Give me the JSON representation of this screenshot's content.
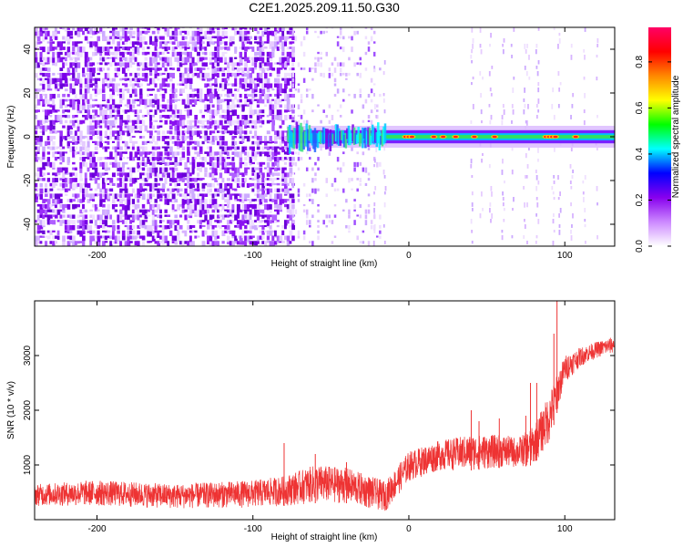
{
  "title": "C2E1.2025.209.11.50.G30",
  "chart_data": [
    {
      "type": "heatmap",
      "xlabel": "Height of straight line (km)",
      "ylabel": "Frequency (Hz)",
      "xlim": [
        -240,
        132
      ],
      "ylim": [
        -50,
        50
      ],
      "x_ticks": [
        -200,
        -100,
        0,
        100
      ],
      "y_ticks": [
        -40,
        -20,
        0,
        20,
        40
      ],
      "colorbar": {
        "label": "Normalized spectral amplitude",
        "range": [
          0.0,
          0.95
        ],
        "ticks": [
          0.0,
          0.2,
          0.4,
          0.6,
          0.8
        ],
        "colors": [
          "#ffffff",
          "#cc88ff",
          "#8800ee",
          "#0000ff",
          "#00ffff",
          "#00ff00",
          "#ffff00",
          "#ff8800",
          "#ff0000",
          "#ff0066"
        ]
      },
      "features": {
        "noise_region": [
          -240,
          -75
        ],
        "faint_noise_region": [
          -75,
          -18
        ],
        "carrier_band_start": -78,
        "carrier_frequency": 0
      },
      "grid": false
    },
    {
      "type": "line",
      "xlabel": "Height of straight line (km)",
      "ylabel": "SNR (10 * v/v)",
      "xlim": [
        -240,
        132
      ],
      "ylim": [
        0,
        4000
      ],
      "x_ticks": [
        -200,
        -100,
        0,
        100
      ],
      "y_ticks": [
        1000,
        2000,
        3000
      ],
      "series_color": "#ee3333",
      "envelope": {
        "x": [
          -240,
          -200,
          -150,
          -100,
          -80,
          -60,
          -40,
          -25,
          -15,
          0,
          20,
          40,
          60,
          70,
          80,
          90,
          100,
          110,
          120,
          132
        ],
        "low": [
          250,
          250,
          200,
          220,
          250,
          300,
          300,
          200,
          150,
          700,
          900,
          900,
          950,
          950,
          1000,
          1400,
          2500,
          2800,
          2950,
          3050
        ],
        "high": [
          650,
          720,
          650,
          720,
          800,
          1000,
          950,
          800,
          700,
          1250,
          1450,
          1550,
          1550,
          1500,
          1700,
          2300,
          3000,
          3150,
          3250,
          3350
        ]
      },
      "spikes": [
        [
          -80,
          1400
        ],
        [
          -60,
          1200
        ],
        [
          -40,
          1050
        ],
        [
          40,
          2000
        ],
        [
          45,
          1800
        ],
        [
          58,
          1850
        ],
        [
          75,
          1900
        ],
        [
          78,
          2500
        ],
        [
          82,
          2500
        ],
        [
          93,
          3400
        ],
        [
          95,
          4000
        ]
      ],
      "grid": false
    }
  ]
}
